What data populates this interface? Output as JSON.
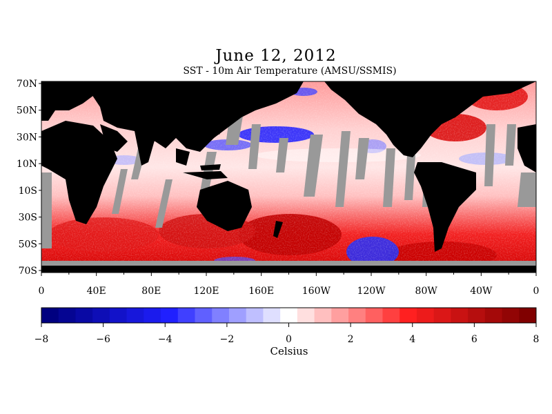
{
  "title": "June 12, 2012",
  "subtitle": "SST - 10m Air Temperature (AMSU/SSMIS)",
  "colorbar": {
    "label": "Celsius",
    "min": -8,
    "max": 8,
    "tick_labels": [
      "−8",
      "−6",
      "−4",
      "−2",
      "0",
      "2",
      "4",
      "6",
      "8"
    ],
    "levels": 29,
    "colors": {
      "negative_end": "#000080",
      "negative_mid": "#2020ff",
      "neutral": "#ffffff",
      "positive_mid": "#ff2020",
      "positive_end": "#800000"
    }
  },
  "map": {
    "land_color": "#000000",
    "no_data_color": "#999999",
    "lat_labels": [
      "70N",
      "50N",
      "30N",
      "10N",
      "10S",
      "30S",
      "50S",
      "70S"
    ],
    "lon_labels": [
      "0",
      "40E",
      "80E",
      "120E",
      "160E",
      "160W",
      "120W",
      "80W",
      "40W",
      "0"
    ]
  }
}
